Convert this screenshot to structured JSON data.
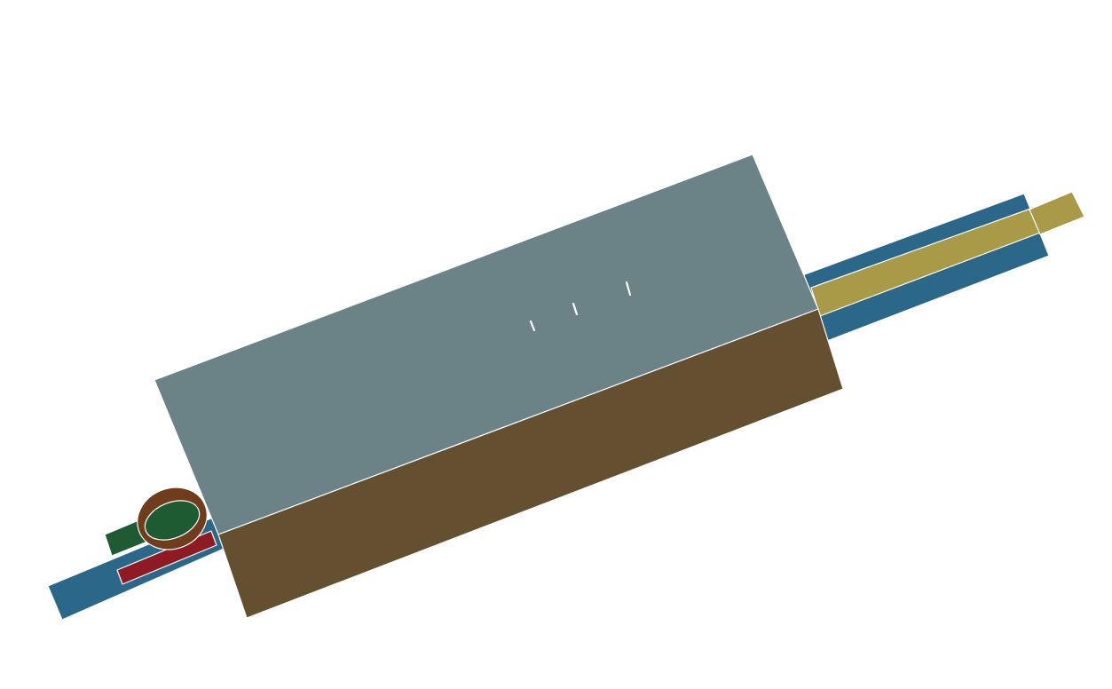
{
  "scene": {
    "background_color": "#ffffff",
    "parts": {
      "main_body_top": {
        "color": "#6b8386"
      },
      "main_body_bottom": {
        "color": "#654f31"
      },
      "right_tube": {
        "color": "#2a6788"
      },
      "right_shaft": {
        "color": "#a89a47"
      },
      "left_tube": {
        "color": "#2a6788"
      },
      "left_red_strip": {
        "color": "#8e1a24"
      },
      "left_green_block": {
        "color": "#1e5a32"
      },
      "left_ring": {
        "outer_color": "#6f3d1c",
        "inner_color": "#1e5a32"
      }
    }
  }
}
